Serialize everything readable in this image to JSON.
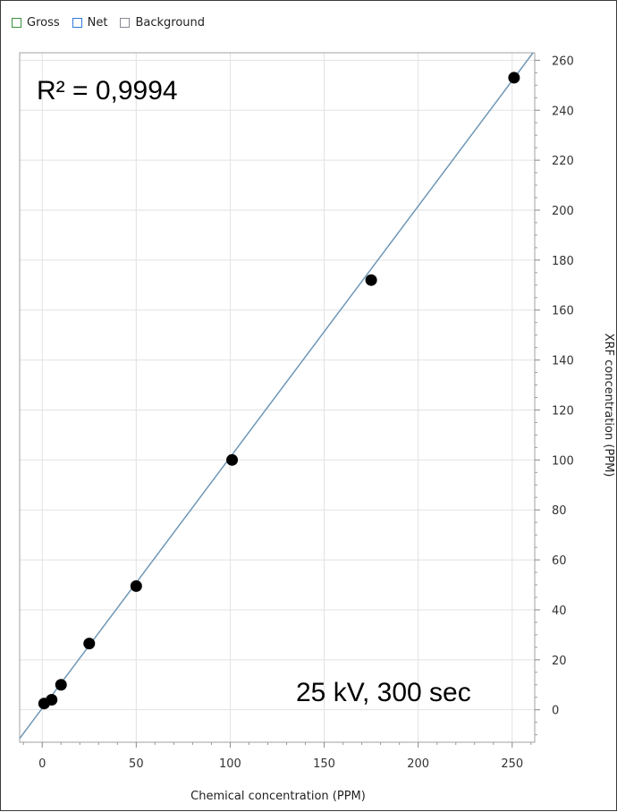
{
  "legend": {
    "items": [
      {
        "label": "Gross",
        "color": "#3a8f3a"
      },
      {
        "label": "Net",
        "color": "#2f7bd8"
      },
      {
        "label": "Background",
        "color": "#8a8a96"
      }
    ]
  },
  "chart_data": {
    "type": "scatter",
    "xlabel": "Chemical concentration (PPM)",
    "ylabel": "XRF concentration (PPM)",
    "xlim": [
      -12,
      262
    ],
    "ylim": [
      -13,
      263
    ],
    "x_ticks": [
      0,
      50,
      100,
      150,
      200,
      250
    ],
    "y_ticks": [
      0,
      20,
      40,
      60,
      80,
      100,
      120,
      140,
      160,
      180,
      200,
      220,
      240,
      260
    ],
    "grid": true,
    "series": [
      {
        "points": [
          {
            "x": 1,
            "y": 2.5
          },
          {
            "x": 5,
            "y": 4
          },
          {
            "x": 10,
            "y": 10
          },
          {
            "x": 25,
            "y": 26.5
          },
          {
            "x": 50,
            "y": 49.5
          },
          {
            "x": 101,
            "y": 100
          },
          {
            "x": 175,
            "y": 172
          },
          {
            "x": 251,
            "y": 253
          }
        ],
        "marker_color": "#000000"
      }
    ],
    "fit_line": {
      "slope": 1.005,
      "intercept": 0.6,
      "color": "#6f97b6"
    },
    "annotations": {
      "r_squared": "R² = 0,9994",
      "conditions": "25 kV, 300 sec"
    }
  }
}
